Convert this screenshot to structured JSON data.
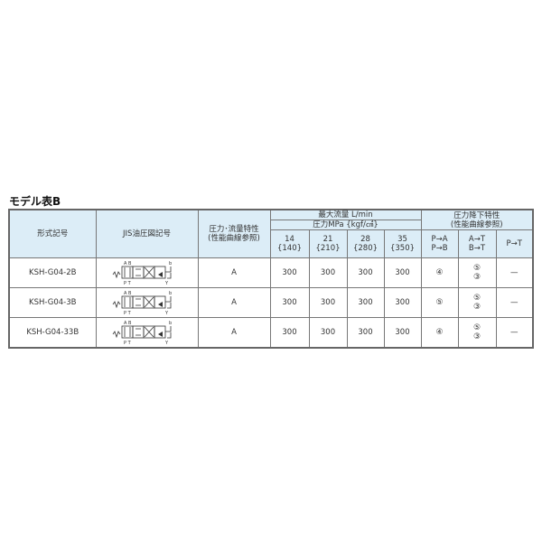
{
  "title": "モデル表B",
  "headers": {
    "model": "形式記号",
    "jis": "JIS油圧図記号",
    "characteristic_l1": "圧力･流量特性",
    "characteristic_l2": "(性能曲線参照)",
    "max_flow": "最大流量 L/min",
    "pressure": "圧力MPa {kgf/㎠}",
    "pressures": [
      {
        "mpa": "14",
        "kgf": "{140}"
      },
      {
        "mpa": "21",
        "kgf": "{210}"
      },
      {
        "mpa": "28",
        "kgf": "{280}"
      },
      {
        "mpa": "35",
        "kgf": "{350}"
      }
    ],
    "drop_l1": "圧力降下特性",
    "drop_l2": "(性能曲線参照)",
    "drop_cols": [
      {
        "l1": "P→A",
        "l2": "P→B"
      },
      {
        "l1": "A→T",
        "l2": "B→T"
      },
      {
        "l1": "P→T",
        "l2": ""
      }
    ]
  },
  "symbol_labels": {
    "ab": "A B",
    "pt": "P T",
    "b": "b",
    "y": "Y"
  },
  "rows": [
    {
      "model": "KSH-G04-2B",
      "char": "A",
      "flows": [
        "300",
        "300",
        "300",
        "300"
      ],
      "pa": "④",
      "at1": "⑤",
      "at2": "③",
      "pt": "—"
    },
    {
      "model": "KSH-G04-3B",
      "char": "A",
      "flows": [
        "300",
        "300",
        "300",
        "300"
      ],
      "pa": "⑤",
      "at1": "⑤",
      "at2": "③",
      "pt": "—"
    },
    {
      "model": "KSH-G04-33B",
      "char": "A",
      "flows": [
        "300",
        "300",
        "300",
        "300"
      ],
      "pa": "④",
      "at1": "⑤",
      "at2": "③",
      "pt": "—"
    }
  ]
}
